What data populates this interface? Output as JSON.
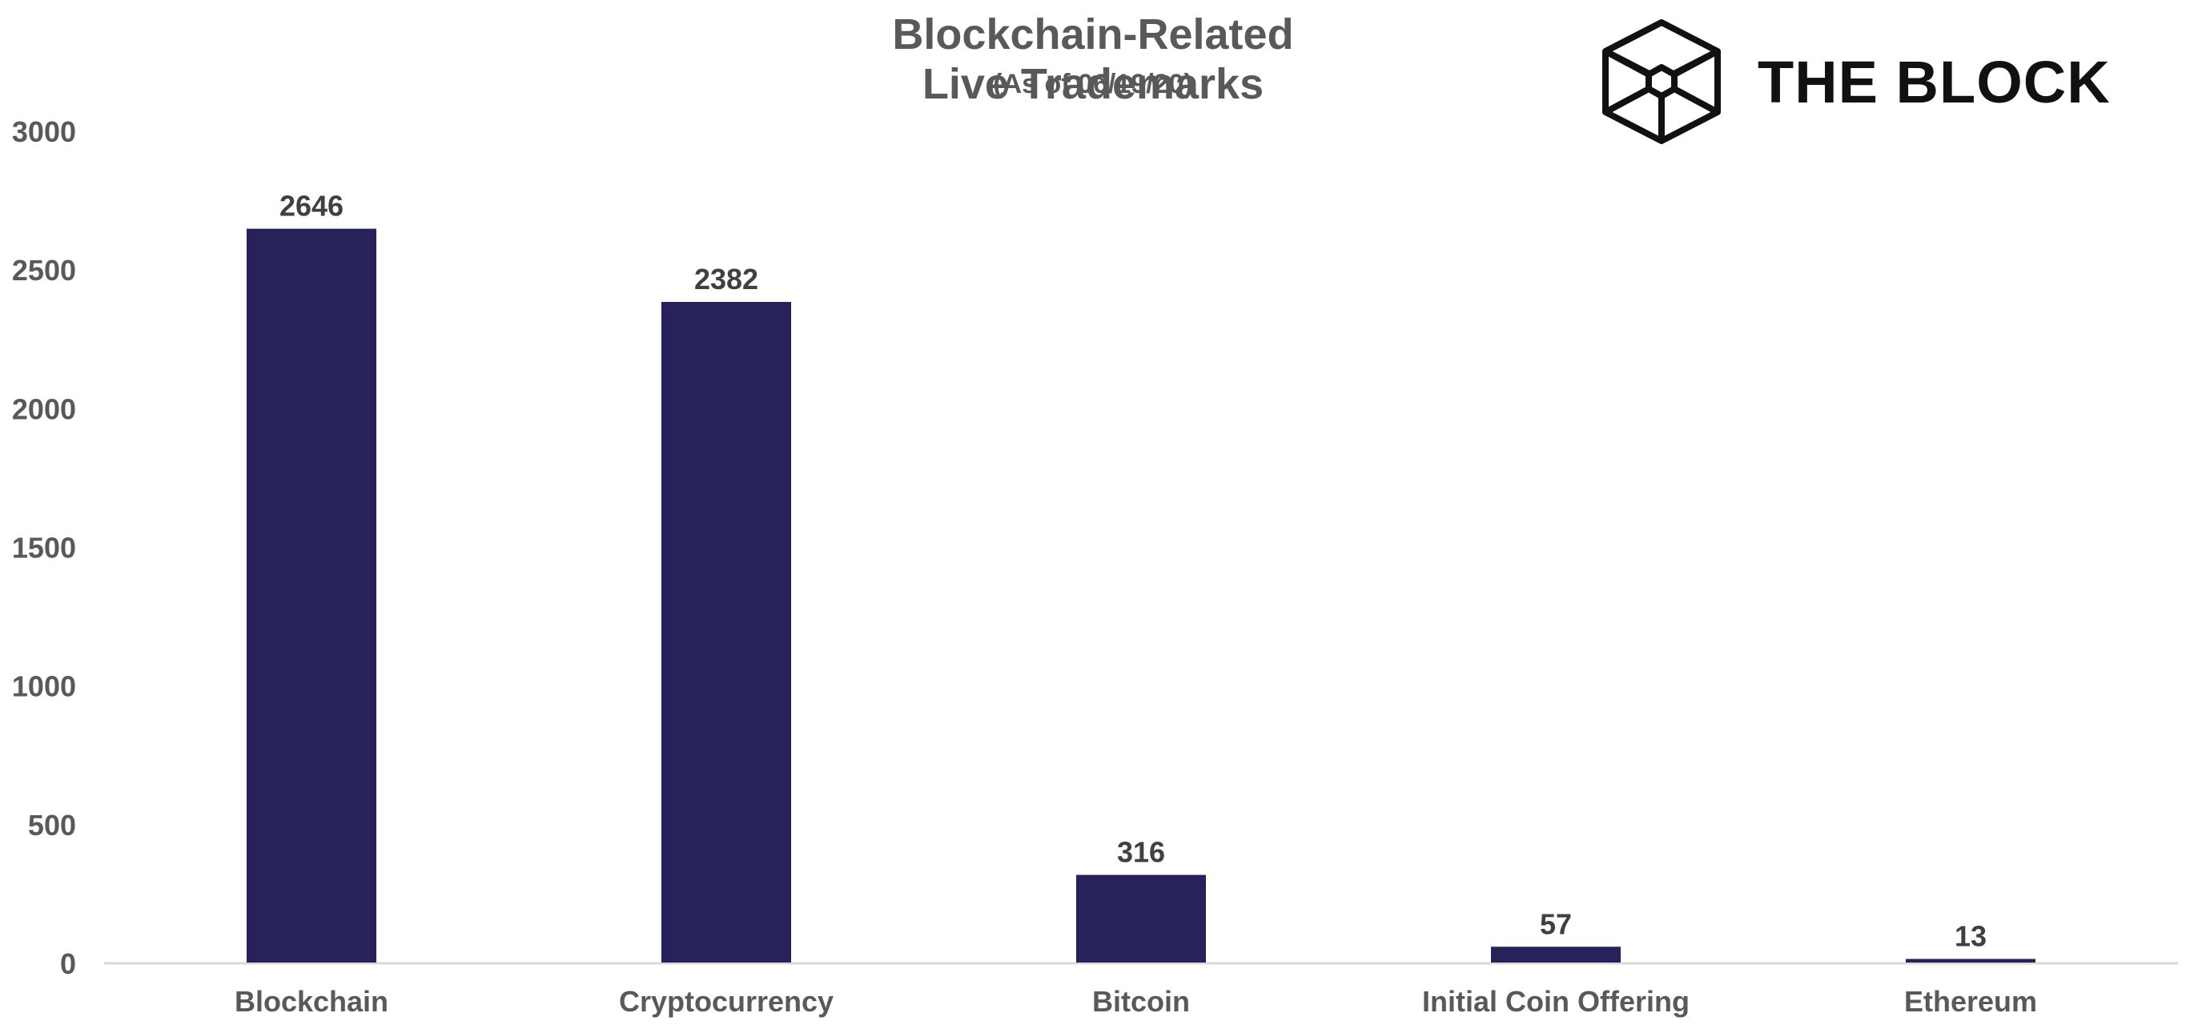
{
  "logo": {
    "text": "THE BLOCK"
  },
  "chart_data": {
    "type": "bar",
    "title": "Blockchain-Related Live Trademarks",
    "subtitle": "(As of 06/19/20)",
    "categories": [
      "Blockchain",
      "Cryptocurrency",
      "Bitcoin",
      "Initial Coin Offering",
      "Ethereum"
    ],
    "values": [
      2646,
      2382,
      316,
      57,
      13
    ],
    "data_labels": [
      "2646",
      "2382",
      "316",
      "57",
      "13"
    ],
    "yticks": [
      "0",
      "500",
      "1000",
      "1500",
      "2000",
      "2500",
      "3000"
    ],
    "ylim": [
      0,
      3000
    ],
    "xlabel": "",
    "ylabel": "",
    "grid": false,
    "legend": "none",
    "colors": {
      "bar": "#27235a",
      "axis_text": "#595959",
      "label_text": "#404040",
      "baseline": "#d9d9d9"
    }
  }
}
